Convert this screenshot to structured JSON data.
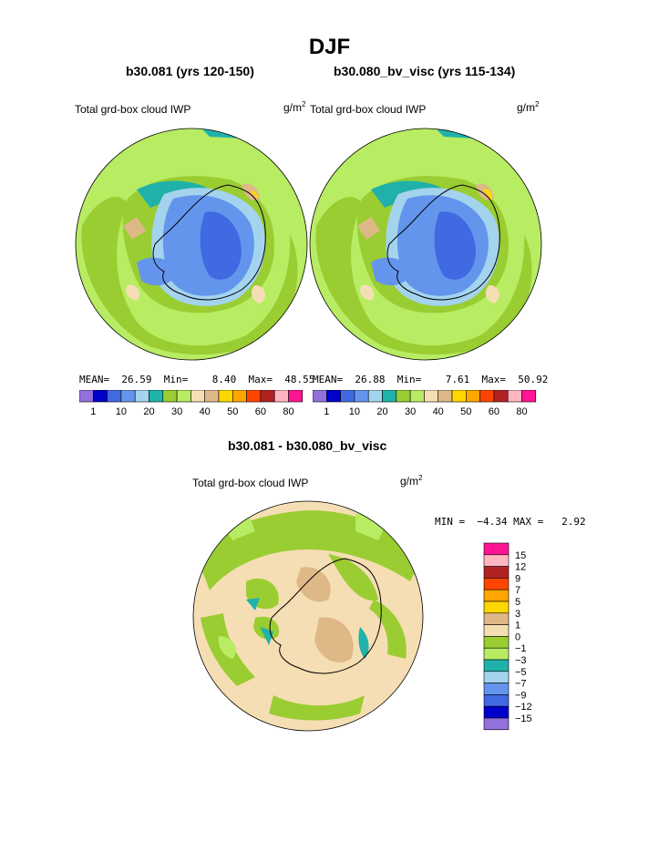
{
  "title": "DJF",
  "panels": [
    {
      "subtitle": "b30.081 (yrs 120-150)",
      "variable": "Total grd-box cloud IWP",
      "units": "g/m",
      "units_exp": "2",
      "stats": {
        "mean_label": "MEAN=",
        "mean": "26.59",
        "min_label": "Min=",
        "min": "8.40",
        "max_label": "Max=",
        "max": "48.55"
      }
    },
    {
      "subtitle": "b30.080_bv_visc (yrs 115-134)",
      "variable": "Total grd-box cloud IWP",
      "units": "g/m",
      "units_exp": "2",
      "stats": {
        "mean_label": "MEAN=",
        "mean": "26.88",
        "min_label": "Min=",
        "min": "7.61",
        "max_label": "Max=",
        "max": "50.92"
      }
    }
  ],
  "difference": {
    "subtitle": "b30.081 - b30.080_bv_visc",
    "variable": "Total grd-box cloud IWP",
    "units": "g/m",
    "units_exp": "2",
    "stats_text": "MIN =  −4.34 MAX =   2.92"
  },
  "chart_data": [
    {
      "type": "heatmap",
      "title": "b30.081 (yrs 120-150)",
      "projection": "polar stereographic, south pole",
      "colorbar": {
        "levels": [
          "1",
          "10",
          "20",
          "30",
          "40",
          "50",
          "60",
          "80"
        ],
        "colors": [
          "#9370db",
          "#0000cd",
          "#4169e1",
          "#6495ed",
          "#a4d3ee",
          "#20b2aa",
          "#9acd32",
          "#b7ec63",
          "#f5deb3",
          "#deb887",
          "#ffd700",
          "#ffa500",
          "#ff4500",
          "#b22222",
          "#ffb6c1",
          "#ff1493"
        ]
      }
    },
    {
      "type": "heatmap",
      "title": "b30.080_bv_visc (yrs 115-134)",
      "projection": "polar stereographic, south pole",
      "colorbar": {
        "levels": [
          "1",
          "10",
          "20",
          "30",
          "40",
          "50",
          "60",
          "80"
        ],
        "colors": [
          "#9370db",
          "#0000cd",
          "#4169e1",
          "#6495ed",
          "#a4d3ee",
          "#20b2aa",
          "#9acd32",
          "#b7ec63",
          "#f5deb3",
          "#deb887",
          "#ffd700",
          "#ffa500",
          "#ff4500",
          "#b22222",
          "#ffb6c1",
          "#ff1493"
        ]
      }
    },
    {
      "type": "heatmap",
      "title": "b30.081 - b30.080_bv_visc",
      "projection": "polar stereographic, south pole",
      "colorbar": {
        "levels": [
          "15",
          "12",
          "9",
          "7",
          "5",
          "3",
          "1",
          "0",
          "−1",
          "−3",
          "−5",
          "−7",
          "−9",
          "−12",
          "−15"
        ],
        "colors": [
          "#ff1493",
          "#ffb6c1",
          "#b22222",
          "#ff4500",
          "#ffa500",
          "#ffd700",
          "#deb887",
          "#f5deb3",
          "#9acd32",
          "#b7ec63",
          "#20b2aa",
          "#a4d3ee",
          "#6495ed",
          "#4169e1",
          "#0000cd",
          "#9370db"
        ]
      }
    }
  ]
}
